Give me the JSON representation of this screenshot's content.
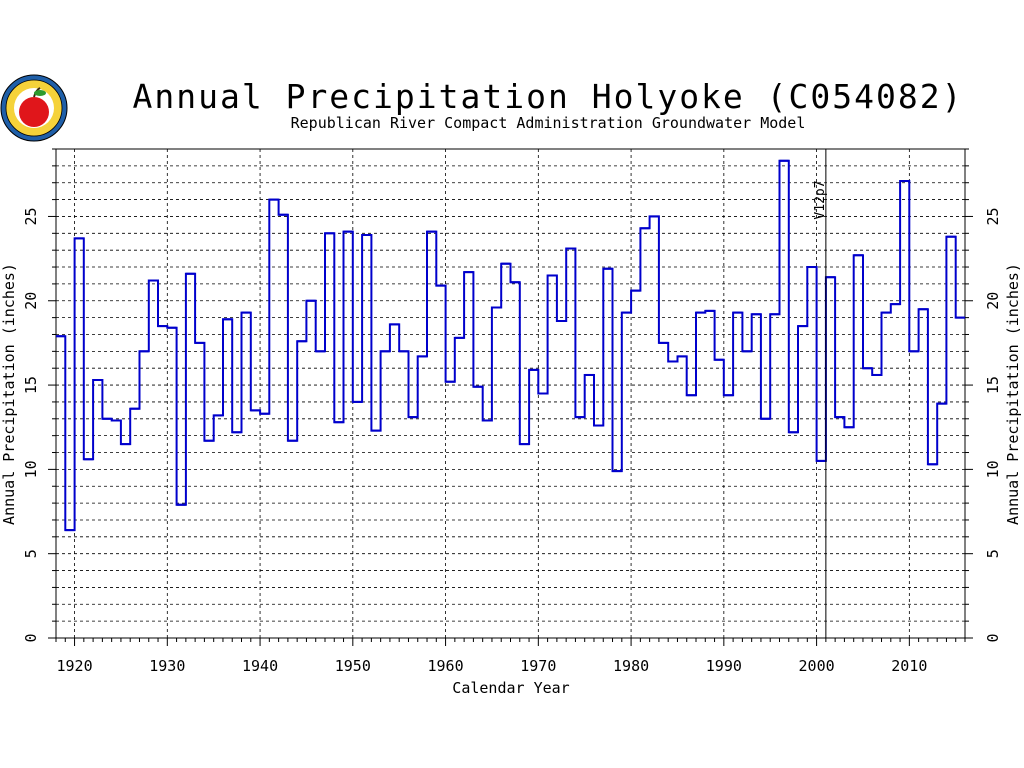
{
  "chart_data": {
    "type": "line",
    "style": "step",
    "title": "Annual Precipitation Holyoke (C054082)",
    "subtitle": "Republican River Compact Administration Groundwater Model",
    "xlabel": "Calendar Year",
    "ylabel": "Annual Precipitation (inches)",
    "y2label": "Annual Precipitation (inches)",
    "xlim": [
      1918,
      2016
    ],
    "ylim": [
      0,
      29
    ],
    "xticks": [
      1920,
      1930,
      1940,
      1950,
      1960,
      1970,
      1980,
      1990,
      2000,
      2010
    ],
    "yticks": [
      0,
      5,
      10,
      15,
      20,
      25
    ],
    "grid": true,
    "series_color": "#0000cc",
    "annotation": {
      "label": "V12p7",
      "x": 2001
    },
    "series": [
      {
        "x": [
          1918,
          1919,
          1920,
          1921,
          1922,
          1923,
          1924,
          1925,
          1926,
          1927,
          1928,
          1929,
          1930,
          1931,
          1932,
          1933,
          1934,
          1935,
          1936,
          1937,
          1938,
          1939,
          1940,
          1941,
          1942,
          1943,
          1944,
          1945,
          1946,
          1947,
          1948,
          1949,
          1950,
          1951,
          1952,
          1953,
          1954,
          1955,
          1956,
          1957,
          1958,
          1959,
          1960,
          1961,
          1962,
          1963,
          1964,
          1965,
          1966,
          1967,
          1968,
          1969,
          1970,
          1971,
          1972,
          1973,
          1974,
          1975,
          1976,
          1977,
          1978,
          1979,
          1980,
          1981,
          1982,
          1983,
          1984,
          1985,
          1986,
          1987,
          1988,
          1989,
          1990,
          1991,
          1992,
          1993,
          1994,
          1995,
          1996,
          1997,
          1998,
          1999,
          2000,
          2001,
          2002,
          2003,
          2004,
          2005,
          2006,
          2007,
          2008,
          2009,
          2010,
          2011,
          2012,
          2013,
          2014,
          2015
        ],
        "values": [
          17.9,
          6.4,
          23.7,
          10.6,
          15.3,
          13.0,
          12.9,
          11.5,
          13.6,
          17.0,
          21.2,
          18.5,
          18.4,
          7.9,
          21.6,
          17.5,
          11.7,
          13.2,
          18.9,
          12.2,
          19.3,
          13.5,
          13.3,
          26.0,
          25.1,
          11.7,
          17.6,
          20.0,
          17.0,
          24.0,
          12.8,
          24.1,
          14.0,
          23.9,
          12.3,
          17.0,
          18.6,
          17.0,
          13.1,
          16.7,
          24.1,
          20.9,
          15.2,
          17.8,
          21.7,
          14.9,
          12.9,
          19.6,
          22.2,
          21.1,
          11.5,
          15.9,
          14.5,
          21.5,
          18.8,
          23.1,
          13.1,
          15.6,
          12.6,
          21.9,
          9.9,
          19.3,
          20.6,
          24.3,
          25.0,
          17.5,
          16.4,
          16.7,
          14.4,
          19.3,
          19.4,
          16.5,
          14.4,
          19.3,
          17.0,
          19.2,
          13.0,
          19.2,
          28.3,
          12.2,
          18.5,
          22.0,
          10.5,
          21.4,
          13.1,
          12.5,
          22.7,
          16.0,
          15.6,
          19.3,
          19.8,
          27.1,
          17.0,
          19.5,
          10.3,
          13.9,
          23.8,
          19.0
        ]
      }
    ]
  }
}
